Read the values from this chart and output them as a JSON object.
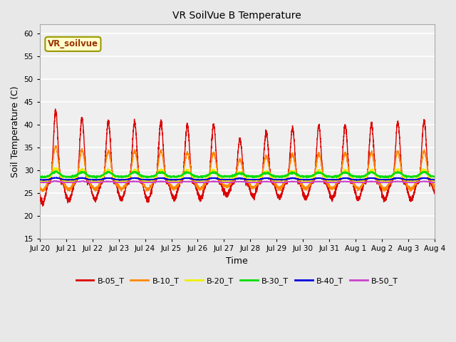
{
  "title": "VR SoilVue B Temperature",
  "xlabel": "Time",
  "ylabel": "Soil Temperature (C)",
  "ylim": [
    15,
    62
  ],
  "yticks": [
    15,
    20,
    25,
    30,
    35,
    40,
    45,
    50,
    55,
    60
  ],
  "legend_label": "VR_soilvue",
  "series_labels": [
    "B-05_T",
    "B-10_T",
    "B-20_T",
    "B-30_T",
    "B-40_T",
    "B-50_T"
  ],
  "series_colors": [
    "#dd0000",
    "#ff8800",
    "#eeee00",
    "#00dd00",
    "#0000dd",
    "#cc44cc"
  ],
  "fig_bg_color": "#e8e8e8",
  "plot_bg_color": "#efefef",
  "n_days": 15,
  "samples_per_day": 288,
  "day_labels": [
    "Jul 20",
    "Jul 21",
    "Jul 22",
    "Jul 23",
    "Jul 24",
    "Jul 25",
    "Jul 26",
    "Jul 27",
    "Jul 28",
    "Jul 29",
    "Jul 30",
    "Jul 31",
    "Aug 1",
    "Aug 2",
    "Aug 3",
    "Aug 4"
  ],
  "baselines": [
    27.5,
    27.8,
    28.2,
    28.8,
    28.0,
    27.4
  ],
  "amplitudes": [
    15.5,
    7.5,
    2.2,
    0.9,
    0.35,
    0.2
  ],
  "peak_hour": 14.5,
  "sharpness": [
    3.5,
    2.5,
    1.5,
    1.2,
    1.0,
    1.0
  ],
  "day_amp_variation": [
    1.0,
    0.9,
    0.85,
    0.85,
    0.85,
    0.8,
    0.8,
    0.6,
    0.7,
    0.75,
    0.78,
    0.8,
    0.82,
    0.84,
    0.86
  ],
  "noise_scales": [
    0.3,
    0.2,
    0.15,
    0.1,
    0.04,
    0.03
  ]
}
